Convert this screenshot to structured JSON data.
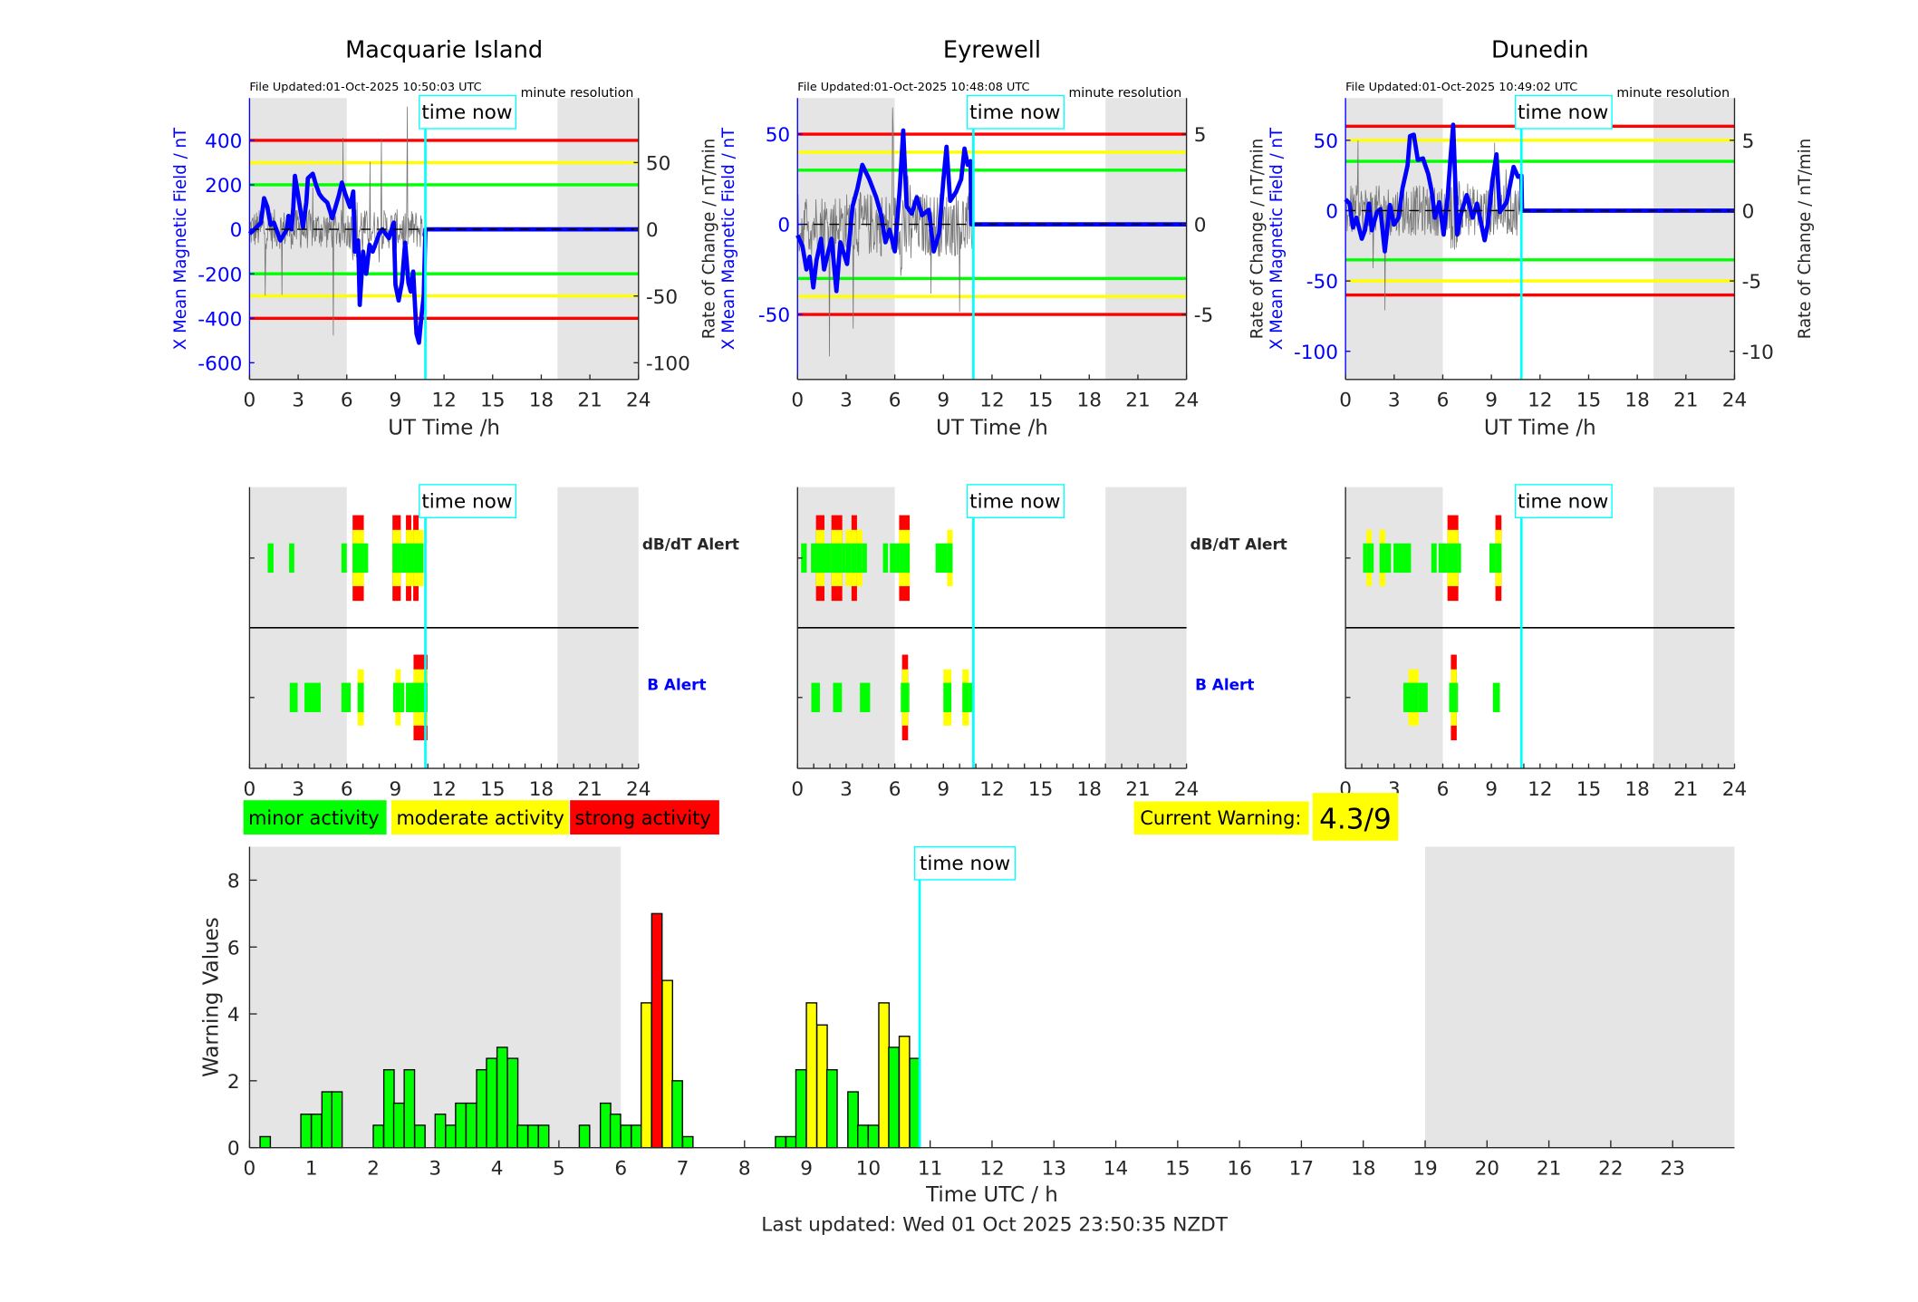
{
  "colors": {
    "minor": "#00ff00",
    "moderate": "#ffff00",
    "strong": "#ff0000",
    "field_line": "#0000ff",
    "time_now": "#00ffff",
    "night_shade": "#e5e5e5",
    "rate_line": "#777777"
  },
  "time_now_label": "time now",
  "time_now_h": 10.85,
  "night_shading_h": [
    [
      0,
      6
    ],
    [
      19,
      24
    ]
  ],
  "stations": [
    {
      "name": "Macquarie Island",
      "file_updated": "File Updated:01-Oct-2025 10:50:03 UTC",
      "resolution": "minute resolution",
      "left_label": "X Mean Magnetic Field / nT",
      "right_label": "Rate of Change / nT/min",
      "xlabel": "UT Time /h",
      "x_ticks": [
        0,
        3,
        6,
        9,
        12,
        15,
        18,
        21,
        24
      ],
      "ylim": [
        -675,
        590
      ],
      "left_ticks": [
        -600,
        -400,
        -200,
        0,
        200,
        400
      ],
      "right_ticks": [
        -100,
        -50,
        0,
        50
      ],
      "nT_per_rate_unit": 6,
      "thresholds": {
        "strong": 400,
        "moderate": 300,
        "minor": 200
      },
      "field_series": [
        [
          0,
          -20
        ],
        [
          0.3,
          0
        ],
        [
          0.7,
          30
        ],
        [
          0.9,
          140
        ],
        [
          1.1,
          100
        ],
        [
          1.3,
          20
        ],
        [
          1.5,
          30
        ],
        [
          1.9,
          -50
        ],
        [
          2.3,
          0
        ],
        [
          2.4,
          60
        ],
        [
          2.6,
          0
        ],
        [
          2.7,
          100
        ],
        [
          2.8,
          240
        ],
        [
          3.0,
          150
        ],
        [
          3.3,
          10
        ],
        [
          3.5,
          120
        ],
        [
          3.6,
          230
        ],
        [
          3.9,
          250
        ],
        [
          4.1,
          200
        ],
        [
          4.3,
          160
        ],
        [
          4.5,
          140
        ],
        [
          4.8,
          120
        ],
        [
          5.1,
          50
        ],
        [
          5.5,
          150
        ],
        [
          5.7,
          210
        ],
        [
          5.9,
          160
        ],
        [
          6.2,
          100
        ],
        [
          6.4,
          170
        ],
        [
          6.5,
          -100
        ],
        [
          6.7,
          -50
        ],
        [
          6.8,
          -340
        ],
        [
          7.0,
          -100
        ],
        [
          7.2,
          -200
        ],
        [
          7.4,
          -70
        ],
        [
          7.6,
          -100
        ],
        [
          8.0,
          -20
        ],
        [
          8.2,
          0
        ],
        [
          8.6,
          -40
        ],
        [
          8.9,
          30
        ],
        [
          9.0,
          -250
        ],
        [
          9.2,
          -320
        ],
        [
          9.4,
          -240
        ],
        [
          9.6,
          -60
        ],
        [
          9.8,
          -240
        ],
        [
          9.95,
          -280
        ],
        [
          10.1,
          -190
        ],
        [
          10.3,
          -470
        ],
        [
          10.45,
          -510
        ],
        [
          10.6,
          -400
        ],
        [
          10.75,
          -300
        ],
        [
          10.85,
          0
        ],
        [
          24,
          0
        ]
      ],
      "alerts": {
        "dbdt_label": "dB/dT Alert",
        "b_label": "B Alert",
        "dbdt": [
          [
            1.12,
            1.48,
            1
          ],
          [
            2.44,
            2.76,
            1
          ],
          [
            5.67,
            6.0,
            1
          ],
          [
            6.36,
            7.05,
            3
          ],
          [
            7.05,
            7.32,
            1
          ],
          [
            8.82,
            9.33,
            3
          ],
          [
            9.33,
            9.65,
            1
          ],
          [
            9.65,
            9.98,
            3
          ],
          [
            9.98,
            10.1,
            2
          ],
          [
            10.1,
            10.43,
            3
          ],
          [
            10.43,
            10.73,
            2
          ]
        ],
        "b": [
          [
            2.48,
            2.97,
            1
          ],
          [
            3.39,
            4.39,
            1
          ],
          [
            5.67,
            6.24,
            1
          ],
          [
            6.67,
            7.05,
            2
          ],
          [
            8.86,
            9.0,
            1
          ],
          [
            9.0,
            9.33,
            2
          ],
          [
            9.33,
            9.55,
            1
          ],
          [
            9.65,
            10.12,
            1
          ],
          [
            10.12,
            10.98,
            3
          ]
        ]
      }
    },
    {
      "name": "Eyrewell",
      "file_updated": "File Updated:01-Oct-2025 10:48:08 UTC",
      "resolution": "minute resolution",
      "left_label": "X Mean Magnetic Field / nT",
      "right_label": "Rate of Change / nT/min",
      "xlabel": "UT Time /h",
      "x_ticks": [
        0,
        3,
        6,
        9,
        12,
        15,
        18,
        21,
        24
      ],
      "ylim": [
        -86,
        70
      ],
      "left_ticks": [
        -50,
        0,
        50
      ],
      "right_ticks": [
        -5,
        0,
        5
      ],
      "nT_per_rate_unit": 10,
      "thresholds": {
        "strong": 50,
        "moderate": 40,
        "minor": 30
      },
      "field_series": [
        [
          0,
          -6
        ],
        [
          0.3,
          -12
        ],
        [
          0.55,
          -25
        ],
        [
          0.75,
          -18
        ],
        [
          0.97,
          -35
        ],
        [
          1.17,
          -20
        ],
        [
          1.45,
          -8
        ],
        [
          1.64,
          -25
        ],
        [
          1.9,
          -15
        ],
        [
          2.1,
          -8
        ],
        [
          2.4,
          -37
        ],
        [
          2.64,
          -10
        ],
        [
          3.06,
          -22
        ],
        [
          3.4,
          10
        ],
        [
          3.7,
          20
        ],
        [
          4.0,
          33
        ],
        [
          4.42,
          25
        ],
        [
          4.85,
          15
        ],
        [
          5.16,
          5
        ],
        [
          5.43,
          -10
        ],
        [
          5.68,
          -3
        ],
        [
          6.0,
          -15
        ],
        [
          6.31,
          20
        ],
        [
          6.52,
          52
        ],
        [
          6.73,
          10
        ],
        [
          7.05,
          6
        ],
        [
          7.36,
          15
        ],
        [
          7.68,
          5
        ],
        [
          8.1,
          8
        ],
        [
          8.41,
          -15
        ],
        [
          8.73,
          -5
        ],
        [
          9.0,
          25
        ],
        [
          9.19,
          43
        ],
        [
          9.42,
          13
        ],
        [
          9.78,
          18
        ],
        [
          10.1,
          25
        ],
        [
          10.3,
          42
        ],
        [
          10.5,
          33
        ],
        [
          10.68,
          35
        ],
        [
          10.72,
          0
        ],
        [
          24,
          0
        ]
      ],
      "alerts": {
        "dbdt_label": "dB/dT Alert",
        "b_label": "B Alert",
        "dbdt": [
          [
            0.22,
            0.57,
            1
          ],
          [
            0.83,
            1.14,
            1
          ],
          [
            1.14,
            1.66,
            3
          ],
          [
            1.66,
            2.09,
            1
          ],
          [
            2.09,
            2.76,
            3
          ],
          [
            2.76,
            2.96,
            1
          ],
          [
            2.96,
            3.33,
            2
          ],
          [
            3.33,
            3.67,
            3
          ],
          [
            3.67,
            4.0,
            2
          ],
          [
            4.0,
            4.28,
            1
          ],
          [
            5.27,
            5.58,
            1
          ],
          [
            5.7,
            6.08,
            1
          ],
          [
            6.08,
            6.27,
            1
          ],
          [
            6.27,
            6.92,
            3
          ],
          [
            8.52,
            9.23,
            1
          ],
          [
            9.23,
            9.57,
            2
          ]
        ],
        "b": [
          [
            0.85,
            1.38,
            1
          ],
          [
            2.19,
            2.74,
            1
          ],
          [
            3.85,
            4.48,
            1
          ],
          [
            6.37,
            6.45,
            1
          ],
          [
            6.45,
            6.82,
            3
          ],
          [
            6.82,
            6.9,
            1
          ],
          [
            9.0,
            9.49,
            2
          ],
          [
            10.17,
            10.57,
            2
          ],
          [
            10.57,
            10.77,
            1
          ]
        ]
      }
    },
    {
      "name": "Dunedin",
      "file_updated": "File Updated:01-Oct-2025 10:49:02 UTC",
      "resolution": "minute resolution",
      "left_label": "X Mean Magnetic Field / nT",
      "right_label": "Rate of Change / nT/min",
      "xlabel": "UT Time /h",
      "x_ticks": [
        0,
        3,
        6,
        9,
        12,
        15,
        18,
        21,
        24
      ],
      "ylim": [
        -120,
        80
      ],
      "left_ticks": [
        -100,
        -50,
        0,
        50
      ],
      "right_ticks": [
        -10,
        -5,
        0,
        5
      ],
      "nT_per_rate_unit": 10,
      "thresholds": {
        "strong": 60,
        "moderate": 50,
        "minor": 35
      },
      "field_series": [
        [
          0,
          8
        ],
        [
          0.25,
          5
        ],
        [
          0.46,
          -12
        ],
        [
          0.67,
          -5
        ],
        [
          1.0,
          -20
        ],
        [
          1.2,
          -14
        ],
        [
          1.45,
          5
        ],
        [
          1.62,
          -14
        ],
        [
          1.94,
          -1
        ],
        [
          2.15,
          1
        ],
        [
          2.42,
          -29
        ],
        [
          2.74,
          4
        ],
        [
          2.99,
          -10
        ],
        [
          3.27,
          -5
        ],
        [
          3.52,
          16
        ],
        [
          3.83,
          32
        ],
        [
          3.98,
          53
        ],
        [
          4.21,
          54
        ],
        [
          4.46,
          36
        ],
        [
          4.78,
          37
        ],
        [
          5.1,
          26
        ],
        [
          5.31,
          14
        ],
        [
          5.52,
          -5
        ],
        [
          5.79,
          6
        ],
        [
          6.05,
          -17
        ],
        [
          6.3,
          10
        ],
        [
          6.47,
          36
        ],
        [
          6.64,
          61
        ],
        [
          6.89,
          -17
        ],
        [
          7.1,
          -3
        ],
        [
          7.48,
          11
        ],
        [
          7.84,
          -5
        ],
        [
          8.11,
          5
        ],
        [
          8.58,
          -21
        ],
        [
          8.79,
          -9
        ],
        [
          9.06,
          21
        ],
        [
          9.31,
          40
        ],
        [
          9.52,
          -1
        ],
        [
          9.94,
          6
        ],
        [
          10.37,
          31
        ],
        [
          10.64,
          24
        ],
        [
          10.85,
          25
        ],
        [
          10.89,
          0
        ],
        [
          24,
          0
        ]
      ],
      "alerts": {
        "dbdt": [
          [
            1.08,
            1.29,
            1
          ],
          [
            1.29,
            1.61,
            2
          ],
          [
            1.61,
            1.74,
            1
          ],
          [
            2.1,
            2.45,
            2
          ],
          [
            2.45,
            2.8,
            1
          ],
          [
            2.96,
            4.04,
            1
          ],
          [
            5.29,
            5.62,
            1
          ],
          [
            5.74,
            6.29,
            1
          ],
          [
            6.29,
            6.96,
            3
          ],
          [
            6.96,
            7.13,
            1
          ],
          [
            8.88,
            9.25,
            1
          ],
          [
            9.25,
            9.62,
            3
          ]
        ],
        "b": [
          [
            3.57,
            3.88,
            1
          ],
          [
            3.88,
            4.51,
            2
          ],
          [
            4.51,
            5.07,
            1
          ],
          [
            6.39,
            6.5,
            1
          ],
          [
            6.5,
            6.86,
            3
          ],
          [
            6.86,
            6.9,
            1
          ],
          [
            9.09,
            9.52,
            1
          ]
        ]
      }
    }
  ],
  "legend": {
    "minor": "minor activity",
    "moderate": "moderate activity",
    "strong": "strong activity"
  },
  "current_warning": {
    "label": "Current Warning:",
    "value": "4.3/9"
  },
  "chart_data": {
    "type": "bar",
    "xlabel": "Time UTC / h",
    "ylabel": "Warning Values",
    "xlim": [
      0,
      24
    ],
    "ylim": [
      0,
      9
    ],
    "x_ticks": [
      0,
      1,
      2,
      3,
      4,
      5,
      6,
      7,
      8,
      9,
      10,
      11,
      12,
      13,
      14,
      15,
      16,
      17,
      18,
      19,
      20,
      21,
      22,
      23
    ],
    "y_ticks": [
      0,
      2,
      4,
      6,
      8
    ],
    "bin_width_h": 0.1667,
    "bars": [
      {
        "start_h": 0.17,
        "value": 0.33,
        "level": "minor"
      },
      {
        "start_h": 0.83,
        "value": 1.0,
        "level": "minor"
      },
      {
        "start_h": 1.0,
        "value": 1.0,
        "level": "minor"
      },
      {
        "start_h": 1.17,
        "value": 1.67,
        "level": "minor"
      },
      {
        "start_h": 1.33,
        "value": 1.67,
        "level": "minor"
      },
      {
        "start_h": 2.0,
        "value": 0.67,
        "level": "minor"
      },
      {
        "start_h": 2.17,
        "value": 2.33,
        "level": "minor"
      },
      {
        "start_h": 2.33,
        "value": 1.33,
        "level": "minor"
      },
      {
        "start_h": 2.5,
        "value": 2.33,
        "level": "minor"
      },
      {
        "start_h": 2.67,
        "value": 0.67,
        "level": "minor"
      },
      {
        "start_h": 3.0,
        "value": 1.0,
        "level": "minor"
      },
      {
        "start_h": 3.17,
        "value": 0.67,
        "level": "minor"
      },
      {
        "start_h": 3.33,
        "value": 1.33,
        "level": "minor"
      },
      {
        "start_h": 3.5,
        "value": 1.33,
        "level": "minor"
      },
      {
        "start_h": 3.67,
        "value": 2.33,
        "level": "minor"
      },
      {
        "start_h": 3.83,
        "value": 2.67,
        "level": "minor"
      },
      {
        "start_h": 4.0,
        "value": 3.0,
        "level": "minor"
      },
      {
        "start_h": 4.17,
        "value": 2.67,
        "level": "minor"
      },
      {
        "start_h": 4.33,
        "value": 0.67,
        "level": "minor"
      },
      {
        "start_h": 4.5,
        "value": 0.67,
        "level": "minor"
      },
      {
        "start_h": 4.67,
        "value": 0.67,
        "level": "minor"
      },
      {
        "start_h": 5.33,
        "value": 0.67,
        "level": "minor"
      },
      {
        "start_h": 5.67,
        "value": 1.33,
        "level": "minor"
      },
      {
        "start_h": 5.83,
        "value": 1.0,
        "level": "minor"
      },
      {
        "start_h": 6.0,
        "value": 0.67,
        "level": "minor"
      },
      {
        "start_h": 6.17,
        "value": 0.67,
        "level": "minor"
      },
      {
        "start_h": 6.33,
        "value": 4.33,
        "level": "moderate"
      },
      {
        "start_h": 6.5,
        "value": 7.0,
        "level": "strong"
      },
      {
        "start_h": 6.67,
        "value": 5.0,
        "level": "moderate"
      },
      {
        "start_h": 6.83,
        "value": 2.0,
        "level": "minor"
      },
      {
        "start_h": 7.0,
        "value": 0.33,
        "level": "minor"
      },
      {
        "start_h": 8.5,
        "value": 0.33,
        "level": "minor"
      },
      {
        "start_h": 8.67,
        "value": 0.33,
        "level": "minor"
      },
      {
        "start_h": 8.83,
        "value": 2.33,
        "level": "minor"
      },
      {
        "start_h": 9.0,
        "value": 4.33,
        "level": "moderate"
      },
      {
        "start_h": 9.17,
        "value": 3.67,
        "level": "moderate"
      },
      {
        "start_h": 9.33,
        "value": 2.33,
        "level": "minor"
      },
      {
        "start_h": 9.67,
        "value": 1.67,
        "level": "minor"
      },
      {
        "start_h": 9.83,
        "value": 0.67,
        "level": "minor"
      },
      {
        "start_h": 10.0,
        "value": 0.67,
        "level": "minor"
      },
      {
        "start_h": 10.17,
        "value": 4.33,
        "level": "moderate"
      },
      {
        "start_h": 10.33,
        "value": 3.0,
        "level": "minor"
      },
      {
        "start_h": 10.5,
        "value": 3.33,
        "level": "moderate"
      },
      {
        "start_h": 10.67,
        "value": 2.67,
        "level": "minor"
      }
    ]
  },
  "last_updated": "Last updated: Wed 01 Oct 2025 23:50:35 NZDT"
}
